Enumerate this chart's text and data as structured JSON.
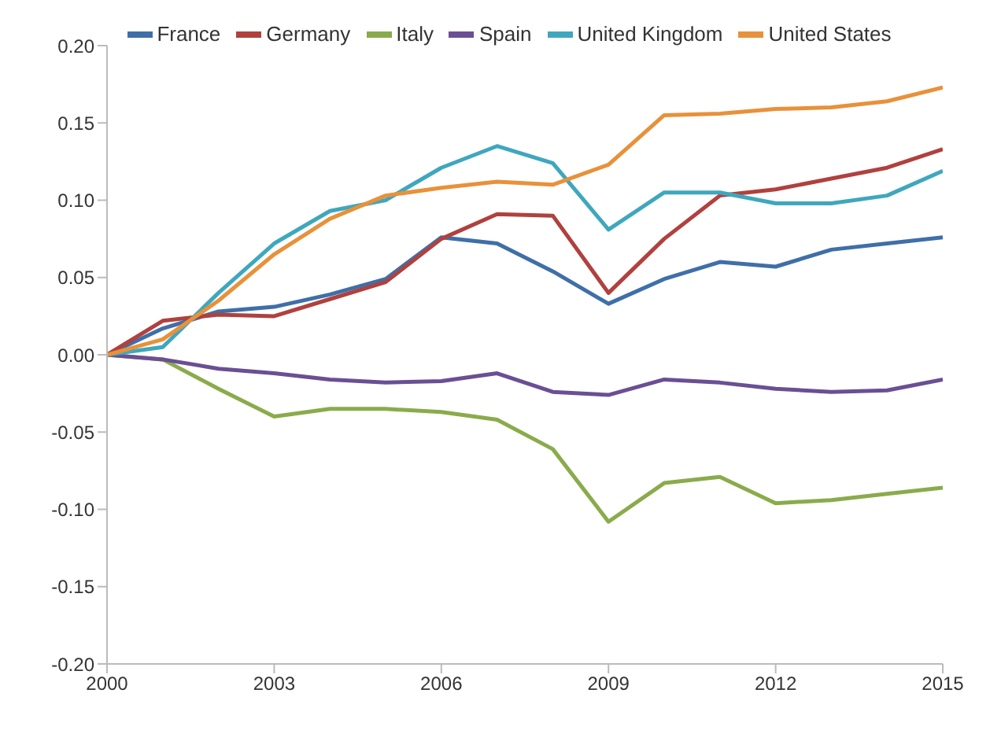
{
  "chart_data": {
    "type": "line",
    "x": [
      2000,
      2001,
      2002,
      2003,
      2004,
      2005,
      2006,
      2007,
      2008,
      2009,
      2010,
      2011,
      2012,
      2013,
      2014,
      2015
    ],
    "xlim": [
      2000,
      2015
    ],
    "xticks": [
      2000,
      2003,
      2006,
      2009,
      2012,
      2015
    ],
    "ylim": [
      -0.2,
      0.2
    ],
    "yticks": [
      {
        "value": -0.2,
        "label": "-0.20"
      },
      {
        "value": -0.15,
        "label": "-0.15"
      },
      {
        "value": -0.1,
        "label": "-0.10"
      },
      {
        "value": -0.05,
        "label": "-0.05"
      },
      {
        "value": 0,
        "label": "0.00"
      },
      {
        "value": 0.05,
        "label": "0.05"
      },
      {
        "value": 0.1,
        "label": "0.10"
      },
      {
        "value": 0.15,
        "label": "0.15"
      },
      {
        "value": 0.2,
        "label": "0.20"
      }
    ],
    "grid": false,
    "legend": "top",
    "marker": "none",
    "line_style": "solid",
    "series": [
      {
        "name": "France",
        "color": "#3f6fa8",
        "values": [
          0,
          0.017,
          0.028,
          0.031,
          0.039,
          0.049,
          0.076,
          0.072,
          0.054,
          0.033,
          0.049,
          0.06,
          0.057,
          0.068,
          0.072,
          0.076
        ]
      },
      {
        "name": "Germany",
        "color": "#b0413e",
        "values": [
          0,
          0.022,
          0.026,
          0.025,
          0.036,
          0.047,
          0.075,
          0.091,
          0.09,
          0.04,
          0.075,
          0.103,
          0.107,
          0.114,
          0.121,
          0.133
        ]
      },
      {
        "name": "Italy",
        "color": "#8aab4b",
        "values": [
          0,
          -0.003,
          -0.022,
          -0.04,
          -0.035,
          -0.035,
          -0.037,
          -0.042,
          -0.061,
          -0.108,
          -0.083,
          -0.079,
          -0.096,
          -0.094,
          -0.09,
          -0.086
        ]
      },
      {
        "name": "Spain",
        "color": "#6a4f94",
        "values": [
          0,
          -0.003,
          -0.009,
          -0.012,
          -0.016,
          -0.018,
          -0.017,
          -0.012,
          -0.024,
          -0.026,
          -0.016,
          -0.018,
          -0.022,
          -0.024,
          -0.023,
          -0.016
        ]
      },
      {
        "name": "United Kingdom",
        "color": "#3fa7bd",
        "values": [
          0,
          0.005,
          0.04,
          0.072,
          0.093,
          0.1,
          0.121,
          0.135,
          0.124,
          0.081,
          0.105,
          0.105,
          0.098,
          0.098,
          0.103,
          0.119
        ]
      },
      {
        "name": "United States",
        "color": "#e8913a",
        "values": [
          0,
          0.01,
          0.035,
          0.065,
          0.088,
          0.103,
          0.108,
          0.112,
          0.11,
          0.123,
          0.155,
          0.156,
          0.159,
          0.16,
          0.164,
          0.173
        ]
      }
    ]
  }
}
